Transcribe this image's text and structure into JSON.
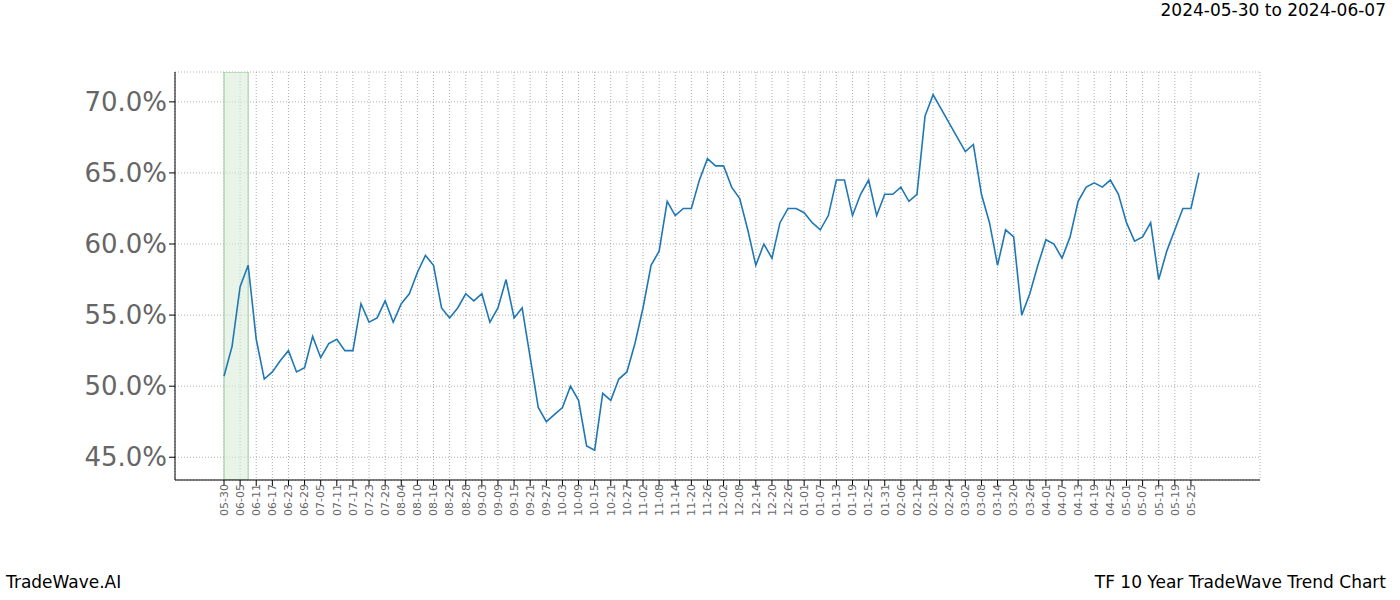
{
  "chart_data": {
    "type": "line",
    "title": "2024-05-30 to 2024-06-07",
    "subtitle": "TF 10 Year TradeWave Trend Chart",
    "source": "TradeWave.AI",
    "categories": [
      "05-30",
      null,
      "06-05",
      null,
      "06-11",
      null,
      "06-17",
      null,
      "06-23",
      null,
      "06-29",
      null,
      "07-05",
      null,
      "07-11",
      null,
      "07-17",
      null,
      "07-23",
      null,
      "07-29",
      null,
      "08-04",
      null,
      "08-10",
      null,
      "08-16",
      null,
      "08-22",
      null,
      "08-28",
      null,
      "09-03",
      null,
      "09-09",
      null,
      "09-15",
      null,
      "09-21",
      null,
      "09-27",
      null,
      "10-03",
      null,
      "10-09",
      null,
      "10-15",
      null,
      "10-21",
      null,
      "10-27",
      null,
      "11-02",
      null,
      "11-08",
      null,
      "11-14",
      null,
      "11-20",
      null,
      "11-26",
      null,
      "12-02",
      null,
      "12-08",
      null,
      "12-14",
      null,
      "12-20",
      null,
      "12-26",
      null,
      "01-01",
      null,
      "01-07",
      null,
      "01-13",
      null,
      "01-19",
      null,
      "01-25",
      null,
      "01-31",
      null,
      "02-06",
      null,
      "02-12",
      null,
      "02-18",
      null,
      "02-24",
      null,
      "03-02",
      null,
      "03-08",
      null,
      "03-14",
      null,
      "03-20",
      null,
      "03-26",
      null,
      "04-01",
      null,
      "04-07",
      null,
      "04-13",
      null,
      "04-19",
      null,
      "04-25",
      null,
      "05-01",
      null,
      "05-07",
      null,
      "05-13",
      null,
      "05-19",
      null,
      "05-25",
      null
    ],
    "values": [
      50.7,
      52.8,
      57,
      58.5,
      53.3,
      50.5,
      51,
      51.8,
      52.5,
      51,
      51.3,
      53.5,
      52,
      53,
      53.3,
      52.5,
      52.5,
      55.8,
      54.5,
      54.8,
      56,
      54.5,
      55.8,
      56.5,
      58,
      59.2,
      58.5,
      55.5,
      54.8,
      55.5,
      56.5,
      56,
      56.5,
      54.5,
      55.5,
      57.5,
      54.8,
      55.5,
      52,
      48.5,
      47.5,
      48,
      48.5,
      50,
      49,
      45.8,
      45.5,
      49.5,
      49,
      50.5,
      51,
      53,
      55.5,
      58.5,
      59.5,
      63,
      62,
      62.5,
      62.5,
      64.5,
      66,
      65.5,
      65.5,
      64,
      63.2,
      61,
      58.5,
      60,
      59,
      61.5,
      62.5,
      62.5,
      62.2,
      61.5,
      61,
      62,
      64.5,
      64.5,
      62,
      63.5,
      64.5,
      62,
      63.5,
      63.5,
      64,
      63,
      63.5,
      69,
      70.5,
      69.5,
      68.5,
      67.5,
      66.5,
      67,
      63.5,
      61.5,
      58.5,
      61,
      60.5,
      55,
      56.5,
      58.5,
      60.3,
      60,
      59,
      60.5,
      63,
      64,
      64.3,
      64,
      64.5,
      63.5,
      61.5,
      60.2,
      60.5,
      61.5,
      57.5,
      59.5,
      61,
      62.5,
      62.5,
      65
    ],
    "color": "#1f77b4",
    "ylim": [
      43.4,
      72.1
    ],
    "yticks": [
      {
        "value": 45,
        "label": "45.0%"
      },
      {
        "value": 50,
        "label": "50.0%"
      },
      {
        "value": 55,
        "label": "55.0%"
      },
      {
        "value": 60,
        "label": "60.0%"
      },
      {
        "value": 65,
        "label": "65.0%"
      },
      {
        "value": 70,
        "label": "70.0%"
      }
    ],
    "grid": true
  }
}
